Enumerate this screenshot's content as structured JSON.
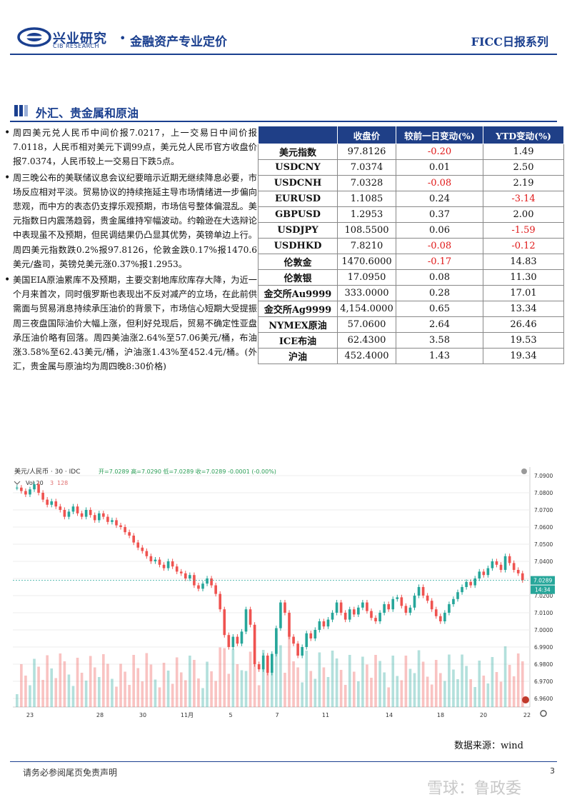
{
  "header": {
    "brand_cn": "兴业研究",
    "brand_en": "CIB RESEARCH",
    "dot": "•",
    "title": "金融资产专业定价",
    "series": "FICC日报系列"
  },
  "section": {
    "title": "外汇、贵金属和原油"
  },
  "bullets": [
    "周四美元兑人民币中间价报7.0217，上一交易日中间价报7.0118，人民币相对美元下调99点，美元兑人民币官方收盘价报7.0374，人民币较上一交易日下跌5点。",
    "周三晚公布的美联储议息会议纪要暗示近期无继续降息必要，市场反应相对平淡。贸易协议的持续拖延主导市场情绪进一步偏向悲观，而中方的表态仍支撑乐观预期，市场信号整体偏混乱。美元指数日内震荡趋弱，贵金属维持窄幅波动。约翰逊在大选辩论中表现虽不及预期，但民调结果仍凸显其优势，英镑单边上行。周四美元指数跌0.2%报97.8126，伦敦金跌0.17%报1470.6美元/盎司，英镑兑美元涨0.37%报1.2953。",
    "美国EIA原油累库不及预期，主要交割地库欣库存大降，为近一个月来首次，同时俄罗斯也表现出不反对减产的立场，在此前供需面与贸易消息持续承压油价的背景下，市场信心短期大受提振周三夜盘国际油价大幅上涨，但利好兑现后，贸易不确定性亚盘承压油价略有回落。周四美油涨2.64%至57.06美元/桶，布油涨3.58%至62.43美元/桶，沪油涨1.43%至452.4元/桶。(外汇，贵金属与原油均为周四晚8:30价格)"
  ],
  "table": {
    "headers": [
      "",
      "收盘价",
      "较前一日变动(%)",
      "YTD变动(%)"
    ],
    "rows": [
      {
        "name": "美元指数",
        "close": "97.8126",
        "chg": "-0.20",
        "ytd": "1.49"
      },
      {
        "name": "USDCNY",
        "close": "7.0374",
        "chg": "0.01",
        "ytd": "2.50"
      },
      {
        "name": "USDCNH",
        "close": "7.0328",
        "chg": "-0.08",
        "ytd": "2.19"
      },
      {
        "name": "EURUSD",
        "close": "1.1085",
        "chg": "0.24",
        "ytd": "-3.14"
      },
      {
        "name": "GBPUSD",
        "close": "1.2953",
        "chg": "0.37",
        "ytd": "2.00"
      },
      {
        "name": "USDJPY",
        "close": "108.5500",
        "chg": "0.06",
        "ytd": "-1.59"
      },
      {
        "name": "USDHKD",
        "close": "7.8210",
        "chg": "-0.08",
        "ytd": "-0.12"
      },
      {
        "name": "伦敦金",
        "close": "1470.6000",
        "chg": "-0.17",
        "ytd": "14.83"
      },
      {
        "name": "伦敦银",
        "close": "17.0950",
        "chg": "0.08",
        "ytd": "11.30"
      },
      {
        "name": "金交所Au9999",
        "close": "333.0000",
        "chg": "0.28",
        "ytd": "17.01"
      },
      {
        "name": "金交所Ag9999",
        "close": "4,154.0000",
        "chg": "0.65",
        "ytd": "13.34"
      },
      {
        "name": "NYMEX原油",
        "close": "57.0600",
        "chg": "2.64",
        "ytd": "26.46"
      },
      {
        "name": "ICE布油",
        "close": "62.4300",
        "chg": "3.58",
        "ytd": "19.53"
      },
      {
        "name": "沪油",
        "close": "452.4000",
        "chg": "1.43",
        "ytd": "19.34"
      }
    ],
    "neg_color": "#e01818",
    "header_bg": "#1f3f87"
  },
  "chart_data": {
    "type": "line",
    "title": "美元/人民币 · 30 · IDC",
    "ohlc_text": "开=7.0289 高=7.0290 低=7.0289 收=7.0289 -0.0001 (-0.00%)",
    "volume_label": "Vol 20",
    "volume_values": [
      "3",
      "128"
    ],
    "ylim": [
      6.955,
      7.095
    ],
    "y_ticks": [
      "7.0900",
      "7.0800",
      "7.0700",
      "7.0600",
      "7.0500",
      "7.0400",
      "7.0300",
      "7.0200",
      "7.0100",
      "7.0000",
      "6.9900",
      "6.9800",
      "6.9700",
      "6.9600"
    ],
    "x_ticks": [
      "23",
      "28",
      "30",
      "11月",
      "5",
      "7",
      "11",
      "14",
      "18",
      "20",
      "22"
    ],
    "last_price": "7.0289",
    "last_time": "14:34",
    "series": [
      {
        "values": [
          7.083,
          7.081,
          7.079,
          7.082,
          7.085,
          7.08,
          7.076,
          7.073,
          7.075,
          7.072,
          7.07,
          7.066,
          7.069,
          7.072,
          7.068,
          7.066,
          7.07,
          7.067,
          7.064,
          7.068,
          7.066,
          7.063,
          7.064,
          7.061,
          7.06,
          7.057,
          7.055,
          7.051,
          7.048,
          7.046,
          7.043,
          7.04,
          7.041,
          7.038,
          7.036,
          7.04,
          7.037,
          7.034,
          7.033,
          7.03,
          7.032,
          7.026,
          7.024,
          7.027,
          7.03,
          7.026,
          7.021,
          7.012,
          6.997,
          6.99,
          6.996,
          6.992,
          6.999,
          7.012,
          7.003,
          6.98,
          6.977,
          6.985,
          6.975,
          6.986,
          7.001,
          7.016,
          7.01,
          6.996,
          6.992,
          6.985,
          6.99,
          6.998,
          6.995,
          7.0,
          7.005,
          7.002,
          7.006,
          7.01,
          7.016,
          7.01,
          7.006,
          7.012,
          7.009,
          7.013,
          7.016,
          7.011,
          7.007,
          7.005,
          7.01,
          7.015,
          7.012,
          7.018,
          7.019,
          7.014,
          7.01,
          7.013,
          7.02,
          7.025,
          7.02,
          7.017,
          7.012,
          7.008,
          7.005,
          7.01,
          7.015,
          7.018,
          7.022,
          7.025,
          7.028,
          7.026,
          7.03,
          7.034,
          7.032,
          7.036,
          7.04,
          7.038,
          7.035,
          7.043,
          7.039,
          7.035,
          7.033,
          7.029
        ]
      }
    ]
  },
  "source": "数据来源：wind",
  "footer": {
    "disclaimer": "请务必参阅尾页免责声明",
    "page": "3",
    "watermark": "雪球：鲁政委"
  }
}
